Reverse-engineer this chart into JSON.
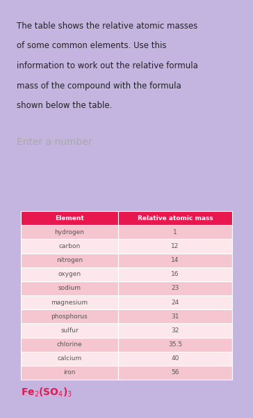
{
  "title_lines": [
    "The table shows the relative atomic masses",
    "of some common elements. Use this",
    "information to work out the relative formula",
    "mass of the compound with the formula",
    "shown below the table."
  ],
  "input_placeholder": "Enter a number",
  "header": [
    "Element",
    "Relative atomic mass"
  ],
  "rows": [
    [
      "hydrogen",
      "1"
    ],
    [
      "carbon",
      "12"
    ],
    [
      "nitrogen",
      "14"
    ],
    [
      "oxygen",
      "16"
    ],
    [
      "sodium",
      "23"
    ],
    [
      "magnesium",
      "24"
    ],
    [
      "phosphorus",
      "31"
    ],
    [
      "sulfur",
      "32"
    ],
    [
      "chlorine",
      "35.5"
    ],
    [
      "calcium",
      "40"
    ],
    [
      "iron",
      "56"
    ]
  ],
  "header_bg": "#e8174e",
  "row_bg_even": "#f5c6d0",
  "row_bg_odd": "#fce8ec",
  "header_text_color": "#ffffff",
  "row_text_color": "#555555",
  "title_bg": "#f0eff4",
  "input_bg": "#e2e2e2",
  "page_bg_top": "#c3b4e0",
  "page_bg_bottom": "#b0a8d4",
  "table_area_bg": "#ffffff",
  "formula_color": "#e8174e",
  "title_fontsize": 8.5,
  "table_fontsize": 6.5,
  "formula_fontsize": 9,
  "input_fontsize": 10,
  "fig_width": 3.64,
  "fig_height": 6.0,
  "dpi": 100
}
